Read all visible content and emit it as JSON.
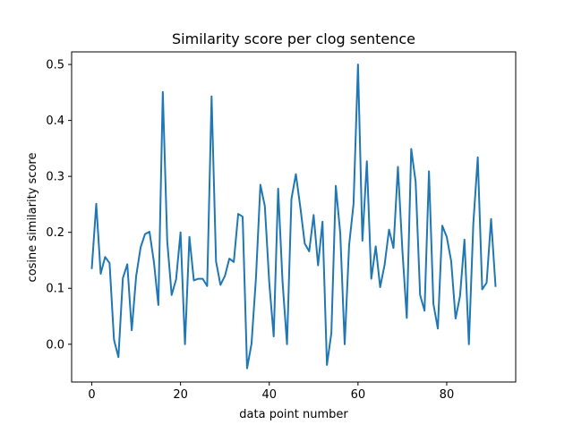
{
  "chart_data": {
    "type": "line",
    "title": "Similarity score per clog sentence",
    "xlabel": "data point number",
    "ylabel": "cosine similarity score",
    "xlim": [
      -4.55,
      95.55
    ],
    "ylim": [
      -0.0675,
      0.5225
    ],
    "xticks": [
      0,
      20,
      40,
      60,
      80
    ],
    "yticks": [
      0.0,
      0.1,
      0.2,
      0.3,
      0.4,
      0.5
    ],
    "xtick_labels": [
      "0",
      "20",
      "40",
      "60",
      "80"
    ],
    "ytick_labels": [
      "0.0",
      "0.1",
      "0.2",
      "0.3",
      "0.4",
      "0.5"
    ],
    "grid": false,
    "legend": "none",
    "line_color": "#1f77b4",
    "series": [
      {
        "x": [
          0,
          1,
          2,
          3,
          4,
          5,
          6,
          7,
          8,
          9,
          10,
          11,
          12,
          13,
          14,
          15,
          16,
          17,
          18,
          19,
          20,
          21,
          22,
          23,
          24,
          25,
          26,
          27,
          28,
          29,
          30,
          31,
          32,
          33,
          34,
          35,
          36,
          37,
          38,
          39,
          40,
          41,
          42,
          43,
          44,
          45,
          46,
          47,
          48,
          49,
          50,
          51,
          52,
          53,
          54,
          55,
          56,
          57,
          58,
          59,
          60,
          61,
          62,
          63,
          64,
          65,
          66,
          67,
          68,
          69,
          70,
          71,
          72,
          73,
          74,
          75,
          76,
          77,
          78,
          79,
          80,
          81,
          82,
          83,
          84,
          85,
          86,
          87,
          88,
          89,
          90,
          91
        ],
        "values": [
          0.136,
          0.251,
          0.126,
          0.156,
          0.145,
          0.008,
          -0.023,
          0.118,
          0.143,
          0.025,
          0.122,
          0.173,
          0.197,
          0.201,
          0.147,
          0.07,
          0.451,
          0.184,
          0.088,
          0.116,
          0.2,
          0.0,
          0.192,
          0.114,
          0.117,
          0.117,
          0.104,
          0.443,
          0.148,
          0.106,
          0.122,
          0.153,
          0.147,
          0.233,
          0.228,
          -0.043,
          0.001,
          0.118,
          0.285,
          0.247,
          0.11,
          0.014,
          0.278,
          0.111,
          0.0,
          0.26,
          0.304,
          0.245,
          0.18,
          0.166,
          0.231,
          0.141,
          0.219,
          -0.037,
          0.02,
          0.283,
          0.199,
          0.0,
          0.177,
          0.251,
          0.5,
          0.185,
          0.327,
          0.117,
          0.175,
          0.102,
          0.142,
          0.205,
          0.172,
          0.317,
          0.169,
          0.047,
          0.349,
          0.29,
          0.088,
          0.06,
          0.309,
          0.072,
          0.028,
          0.212,
          0.192,
          0.149,
          0.046,
          0.086,
          0.187,
          0.0,
          0.216,
          0.334,
          0.098,
          0.11,
          0.224,
          0.104
        ]
      }
    ]
  }
}
